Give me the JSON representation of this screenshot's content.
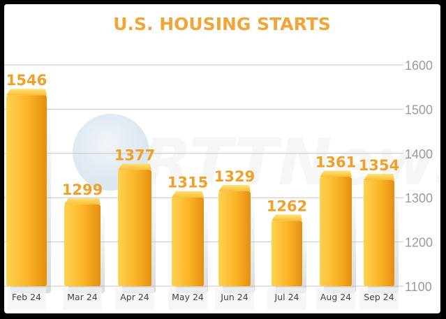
{
  "chart_data": {
    "type": "bar",
    "title": "U.S. HOUSING STARTS",
    "categories": [
      "Feb 24",
      "Mar 24",
      "Apr 24",
      "May 24",
      "Jun 24",
      "Jul 24",
      "Aug 24",
      "Sep 24"
    ],
    "values": [
      1546,
      1299,
      1377,
      1315,
      1329,
      1262,
      1361,
      1354
    ],
    "ylim": [
      1100,
      1600
    ],
    "yticks": [
      1100,
      1200,
      1300,
      1400,
      1500,
      1600
    ],
    "y_axis_position": "right",
    "grid": true,
    "xlabel": "",
    "ylabel": ""
  },
  "watermark": {
    "text": "RTTNews",
    "icon": "globe-icon"
  },
  "colors": {
    "bar_light": "#ffcf48",
    "bar_dark": "#e08a0c",
    "label": "#f0a028",
    "title": "#f0a536",
    "grid": "#c8c8c8"
  }
}
